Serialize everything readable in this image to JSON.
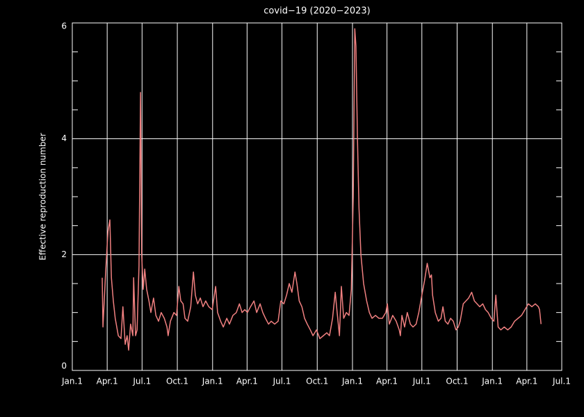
{
  "chart_data": {
    "type": "line",
    "title": "covid−19 (2020−2023)",
    "y_label": "Effective reproduction number",
    "color": "#f08080",
    "grid": true,
    "xlim": [
      0,
      1277
    ],
    "ylim": [
      0,
      6
    ],
    "xticks": [
      {
        "value": 0,
        "label": "Jan.1"
      },
      {
        "value": 91,
        "label": "Apr.1"
      },
      {
        "value": 182,
        "label": "Jul.1"
      },
      {
        "value": 274,
        "label": "Oct.1"
      },
      {
        "value": 366,
        "label": "Jan.1"
      },
      {
        "value": 456,
        "label": "Apr.1"
      },
      {
        "value": 547,
        "label": "Jul.1"
      },
      {
        "value": 639,
        "label": "Oct.1"
      },
      {
        "value": 731,
        "label": "Jan.1"
      },
      {
        "value": 821,
        "label": "Apr.1"
      },
      {
        "value": 912,
        "label": "Jul.1"
      },
      {
        "value": 1004,
        "label": "Oct.1"
      },
      {
        "value": 1096,
        "label": "Jan.1"
      },
      {
        "value": 1186,
        "label": "Apr.1"
      },
      {
        "value": 1277,
        "label": "Jul.1"
      }
    ],
    "yticks": [
      0,
      2,
      4,
      6
    ],
    "yminorticks": [
      0.5,
      1,
      1.5,
      2.5,
      3,
      3.5,
      4.5,
      5,
      5.5
    ],
    "x": [
      78,
      80,
      87,
      93,
      98,
      102,
      107,
      112,
      120,
      127,
      132,
      138,
      143,
      147,
      152,
      158,
      160,
      165,
      169,
      174,
      178,
      181,
      185,
      189,
      194,
      200,
      205,
      212,
      218,
      225,
      232,
      240,
      247,
      250,
      256,
      265,
      272,
      278,
      283,
      289,
      294,
      301,
      309,
      316,
      321,
      327,
      334,
      341,
      348,
      356,
      365,
      374,
      379,
      387,
      394,
      403,
      410,
      419,
      428,
      436,
      443,
      450,
      457,
      465,
      474,
      481,
      490,
      497,
      504,
      512,
      519,
      528,
      537,
      544,
      552,
      559,
      566,
      573,
      581,
      586,
      592,
      599,
      606,
      613,
      621,
      628,
      637,
      646,
      655,
      664,
      671,
      679,
      686,
      691,
      697,
      702,
      708,
      715,
      722,
      728,
      733,
      737,
      740,
      744,
      748,
      753,
      760,
      768,
      775,
      782,
      791,
      800,
      809,
      818,
      822,
      827,
      836,
      845,
      853,
      856,
      860,
      867,
      874,
      882,
      889,
      897,
      904,
      912,
      919,
      926,
      933,
      937,
      940,
      947,
      955,
      962,
      967,
      973,
      980,
      987,
      994,
      1001,
      1007,
      1012,
      1020,
      1027,
      1034,
      1042,
      1049,
      1056,
      1063,
      1071,
      1078,
      1085,
      1093,
      1100,
      1105,
      1111,
      1118,
      1127,
      1136,
      1145,
      1154,
      1163,
      1172,
      1181,
      1190,
      1199,
      1208,
      1216,
      1219,
      1223
    ],
    "values": [
      1.6,
      0.75,
      1.7,
      2.4,
      2.6,
      1.6,
      1.2,
      0.9,
      0.6,
      0.55,
      1.1,
      0.45,
      0.6,
      0.35,
      0.8,
      0.6,
      1.6,
      0.6,
      0.7,
      1.8,
      4.8,
      2.0,
      1.4,
      1.75,
      1.4,
      1.2,
      1.0,
      1.25,
      0.95,
      0.85,
      1.0,
      0.9,
      0.75,
      0.6,
      0.85,
      1.0,
      0.95,
      1.45,
      1.2,
      1.15,
      0.9,
      0.85,
      1.1,
      1.7,
      1.3,
      1.15,
      1.25,
      1.1,
      1.2,
      1.1,
      1.05,
      1.45,
      1.0,
      0.85,
      0.75,
      0.9,
      0.8,
      0.95,
      1.0,
      1.15,
      1.0,
      1.05,
      1.0,
      1.1,
      1.2,
      1.0,
      1.15,
      1.0,
      0.9,
      0.8,
      0.85,
      0.8,
      0.85,
      1.2,
      1.15,
      1.3,
      1.5,
      1.35,
      1.7,
      1.5,
      1.2,
      1.1,
      0.9,
      0.8,
      0.7,
      0.6,
      0.7,
      0.55,
      0.6,
      0.65,
      0.6,
      0.9,
      1.35,
      1.0,
      0.6,
      1.45,
      0.9,
      1.0,
      0.95,
      1.4,
      3.0,
      5.9,
      5.6,
      4.0,
      2.8,
      2.0,
      1.5,
      1.2,
      1.0,
      0.9,
      0.95,
      0.9,
      0.9,
      1.0,
      1.15,
      0.8,
      0.95,
      0.85,
      0.7,
      0.6,
      0.95,
      0.75,
      1.0,
      0.8,
      0.75,
      0.8,
      1.0,
      1.3,
      1.55,
      1.85,
      1.6,
      1.65,
      1.3,
      1.0,
      0.85,
      0.9,
      1.1,
      0.85,
      0.8,
      0.9,
      0.85,
      0.7,
      0.75,
      0.85,
      1.15,
      1.2,
      1.25,
      1.35,
      1.2,
      1.15,
      1.1,
      1.15,
      1.05,
      1.0,
      0.9,
      0.85,
      1.3,
      0.75,
      0.7,
      0.75,
      0.7,
      0.75,
      0.85,
      0.9,
      0.95,
      1.05,
      1.15,
      1.1,
      1.15,
      1.1,
      1.05,
      0.8
    ]
  }
}
